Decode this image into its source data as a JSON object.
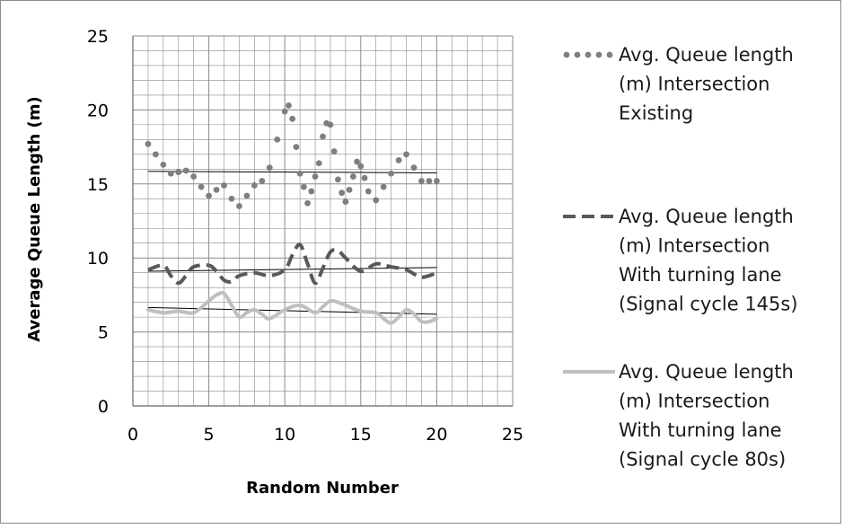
{
  "chart_data": {
    "type": "line",
    "xlabel": "Random Number",
    "ylabel": "Average Queue Length (m)",
    "xlim": [
      0,
      25
    ],
    "ylim": [
      0,
      25
    ],
    "xticks": [
      "0",
      "5",
      "10",
      "15",
      "20",
      "25"
    ],
    "yticks": [
      "0",
      "5",
      "10",
      "15",
      "20",
      "25"
    ],
    "grid": "major and minor",
    "legend_position": "right",
    "series": [
      {
        "name": "Avg. Queue length (m) Intersection Existing",
        "style": "dotted",
        "color": "#7f7f7f",
        "x": [
          1,
          1.5,
          2,
          2.5,
          3,
          3.5,
          4,
          4.5,
          5,
          5.5,
          6,
          6.5,
          7,
          7.5,
          8,
          8.5,
          9,
          9.5,
          10,
          10.25,
          10.5,
          10.75,
          11,
          11.25,
          11.5,
          11.75,
          12,
          12.25,
          12.5,
          12.75,
          13,
          13.25,
          13.5,
          13.75,
          14,
          14.25,
          14.5,
          14.75,
          15,
          15.25,
          15.5,
          16,
          16.5,
          17,
          17.5,
          18,
          18.5,
          19,
          19.5,
          20
        ],
        "y": [
          17.7,
          17,
          16.3,
          15.7,
          15.8,
          15.9,
          15.5,
          14.8,
          14.2,
          14.6,
          14.9,
          14,
          13.5,
          14.2,
          14.9,
          15.2,
          16.1,
          18,
          19.9,
          20.3,
          19.4,
          17.5,
          15.7,
          14.8,
          13.7,
          14.5,
          15.5,
          16.4,
          18.2,
          19.1,
          19,
          17.2,
          15.3,
          14.4,
          13.8,
          14.6,
          15.5,
          16.5,
          16.2,
          15.4,
          14.5,
          13.9,
          14.8,
          15.7,
          16.6,
          17,
          16.1,
          15.2,
          15.2,
          15.2
        ],
        "trend": [
          15.85,
          15.75
        ]
      },
      {
        "name": "Avg. Queue length (m) Intersection With turning lane (Signal cycle 145s)",
        "style": "dashed",
        "color": "#595959",
        "x": [
          1,
          2,
          2.5,
          3,
          3.5,
          4,
          5,
          5.5,
          6,
          6.5,
          7,
          8,
          9,
          10,
          10.5,
          11,
          11.5,
          12,
          12.5,
          13,
          13.5,
          14,
          15,
          16,
          17,
          18,
          19,
          20
        ],
        "y": [
          9.2,
          9.5,
          8.8,
          8.3,
          8.8,
          9.4,
          9.5,
          9.1,
          8.5,
          8.4,
          8.8,
          9.0,
          8.8,
          9.2,
          10.2,
          10.9,
          9.6,
          8.3,
          9.3,
          10.4,
          10.5,
          10.0,
          9.1,
          9.6,
          9.4,
          9.2,
          8.7,
          9.0
        ],
        "trend": [
          9.1,
          9.35
        ]
      },
      {
        "name": "Avg. Queue length (m) Intersection With turning lane (Signal cycle 80s)",
        "style": "solid",
        "color": "#bfbfbf",
        "x": [
          1,
          2,
          3,
          4,
          5,
          5.5,
          6,
          6.5,
          7,
          7.5,
          8,
          8.5,
          9,
          10,
          11,
          12,
          12.5,
          13,
          13.5,
          14,
          15,
          16,
          16.5,
          17,
          17.5,
          18,
          18.5,
          19,
          19.5,
          20
        ],
        "y": [
          6.5,
          6.3,
          6.4,
          6.3,
          7.1,
          7.5,
          7.6,
          6.8,
          6.0,
          6.3,
          6.5,
          6.2,
          5.9,
          6.5,
          6.8,
          6.3,
          6.7,
          7.1,
          7.0,
          6.8,
          6.4,
          6.3,
          5.9,
          5.6,
          6.0,
          6.5,
          6.2,
          5.7,
          5.7,
          5.9
        ],
        "trend": [
          6.65,
          6.2
        ]
      }
    ]
  }
}
